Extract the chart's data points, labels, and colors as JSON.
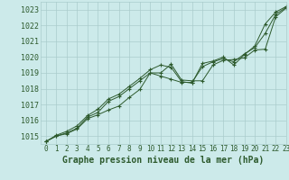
{
  "title": "Graphe pression niveau de la mer (hPa)",
  "bg_color": "#cceaea",
  "plot_bg_color": "#cceaea",
  "grid_color": "#aacccc",
  "line_color": "#2d5a2d",
  "xlim": [
    -0.5,
    23
  ],
  "ylim": [
    1014.5,
    1023.5
  ],
  "ytick_start": 1015,
  "ytick_end": 1023,
  "xlabel_fontsize": 7,
  "ytick_fontsize": 6,
  "xtick_fontsize": 5.5,
  "series": [
    [
      1014.65,
      1015.0,
      1015.15,
      1015.45,
      1016.1,
      1016.35,
      1016.65,
      1016.9,
      1017.45,
      1017.95,
      1019.0,
      1019.0,
      1019.55,
      1018.55,
      1018.5,
      1018.5,
      1019.5,
      1019.8,
      1019.85,
      1019.95,
      1020.45,
      1020.5,
      1022.55,
      1023.1
    ],
    [
      1014.65,
      1015.0,
      1015.2,
      1015.5,
      1016.2,
      1016.5,
      1017.2,
      1017.5,
      1018.0,
      1018.5,
      1019.0,
      1018.8,
      1018.6,
      1018.4,
      1018.4,
      1019.4,
      1019.7,
      1019.9,
      1019.7,
      1020.2,
      1020.6,
      1021.5,
      1022.7,
      1023.15
    ],
    [
      1014.65,
      1015.05,
      1015.3,
      1015.65,
      1016.3,
      1016.7,
      1017.35,
      1017.65,
      1018.15,
      1018.65,
      1019.2,
      1019.5,
      1019.35,
      1018.45,
      1018.35,
      1019.6,
      1019.75,
      1020.0,
      1019.5,
      1020.15,
      1020.7,
      1022.1,
      1022.85,
      1023.2
    ]
  ]
}
